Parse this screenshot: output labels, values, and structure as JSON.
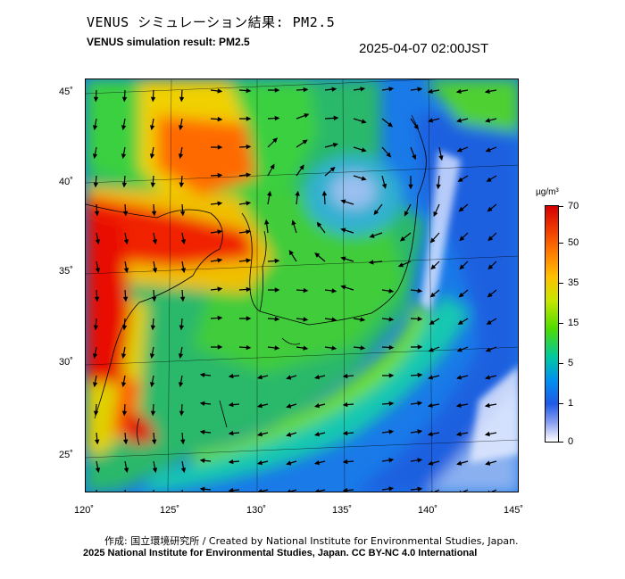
{
  "header": {
    "title_jp": "VENUS シミュレーション結果: PM2.5",
    "title_en": "VENUS simulation result: PM2.5",
    "timestamp": "2025-04-07 02:00JST"
  },
  "map": {
    "lat_labels": [
      "45˚",
      "40˚",
      "35˚",
      "30˚",
      "25˚"
    ],
    "lon_labels": [
      "120˚",
      "125˚",
      "130˚",
      "135˚",
      "140˚",
      "145˚"
    ]
  },
  "colorbar": {
    "unit": "µg/m³",
    "labels": [
      "70",
      "50",
      "35",
      "15",
      "5",
      "1",
      "0"
    ]
  },
  "footer": {
    "credit_line1": "作成: 国立環境研究所 / Created by National Institute for Environmental Studies, Japan.",
    "credit_line2": "2025 National Institute for Environmental Studies, Japan. CC BY-NC 4.0 International"
  }
}
